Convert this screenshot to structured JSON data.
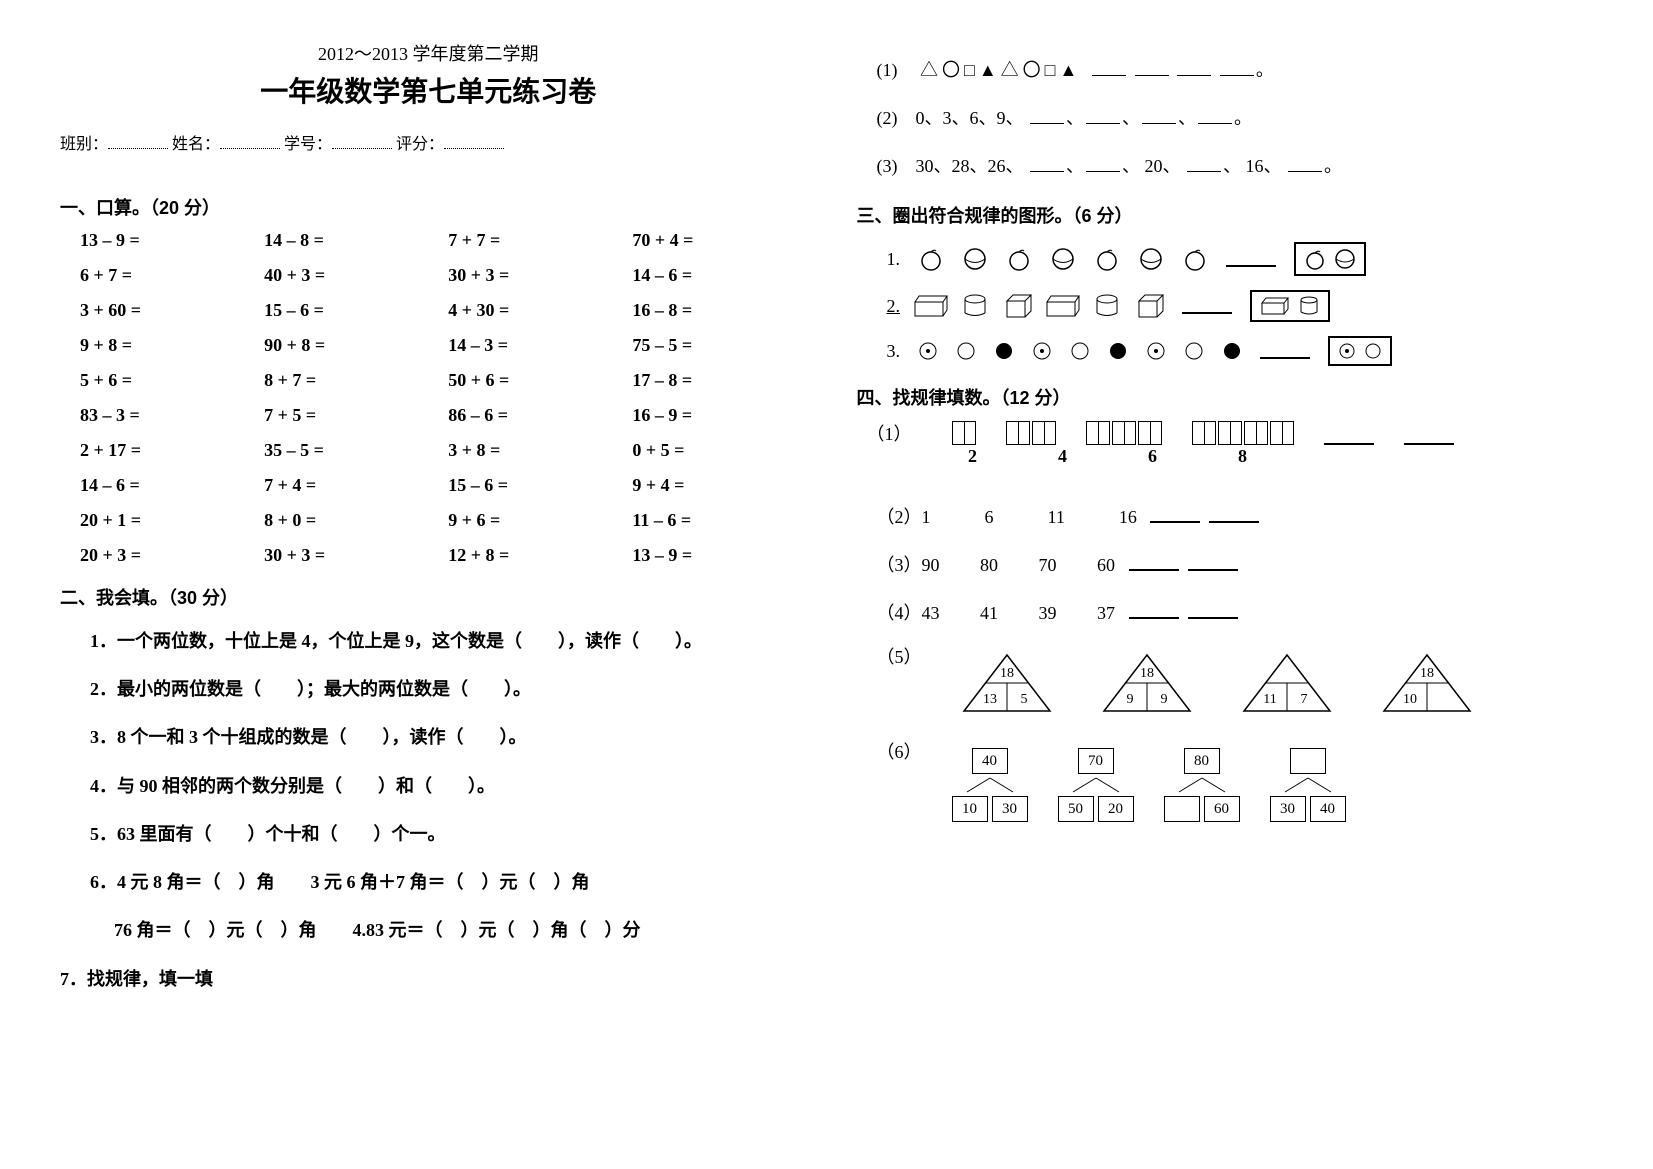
{
  "header": {
    "subtitle": "2012～2013 学年度第二学期",
    "title": "一年级数学第七单元练习卷",
    "info_class": "班别：",
    "info_name": "姓名：",
    "info_id": "学号：",
    "info_score": "评分："
  },
  "s1": {
    "head": "一、口算。（20 分）",
    "cells": [
      "13 – 9 =",
      "14 – 8 =",
      "7 + 7 =",
      "70 + 4 =",
      "6 + 7 =",
      "40 + 3 =",
      "30 + 3 =",
      "14 – 6 =",
      "3 + 60 =",
      "15 – 6 =",
      "4 + 30 =",
      "16 – 8 =",
      "9 + 8 =",
      "90 + 8 =",
      "14 – 3 =",
      "75 – 5 =",
      "5 + 6 =",
      "8 + 7 =",
      "50 + 6 =",
      "17 – 8 =",
      "83 – 3 =",
      "7 + 5 =",
      "86 – 6 =",
      "16 – 9 =",
      "2 + 17 =",
      "35 – 5 =",
      "3 + 8 =",
      "0 + 5 =",
      "14 – 6 =",
      "7 + 4 =",
      "15 – 6 =",
      "9 + 4 =",
      "20 + 1 =",
      "8 + 0 =",
      "9 + 6 =",
      "11 – 6 =",
      "20 + 3 =",
      "30 + 3 =",
      "12 + 8 =",
      "13 – 9 ="
    ]
  },
  "s2": {
    "head": "二、我会填。（30 分）",
    "q1": "1．一个两位数，十位上是 4，个位上是 9，这个数是（　　），读作（　　）。",
    "q2": "2．最小的两位数是（　　）；最大的两位数是（　　）。",
    "q3": "3．8 个一和 3 个十组成的数是（　　），读作（　　）。",
    "q4": "4．与 90 相邻的两个数分别是（　　）和（　　）。",
    "q5": "5．63 里面有（　　）个十和（　　）个一。",
    "q6a": "6．4 元 8 角＝（　）角　　3 元 6 角＋7 角＝（　）元（　）角",
    "q6b": "76 角＝（　）元（　）角　　4.83 元＝（　）元（　）角（　）分",
    "q7": "7．找规律，填一填"
  },
  "r7": {
    "l1_prefix": "(1)　",
    "l1_shapes": "△〇□▲△〇□▲",
    "l2_prefix": "(2)　0、3、6、9、",
    "l3_prefix": "(3)　30、28、26、",
    "l3_mid1": "20、",
    "l3_mid2": "16、"
  },
  "s3": {
    "head": "三、圈出符合规律的图形。（6 分）",
    "label1": "1.",
    "label2": "2.",
    "label3": "3."
  },
  "s4": {
    "head": "四、找规律填数。（12 分）",
    "q1_label": "（1）",
    "q1_nums": [
      "2",
      "4",
      "6",
      "8"
    ],
    "seq2": "（2）1　　　6　　　11　　　16",
    "seq3": "（3）90　　 80　　 70　　 60",
    "seq4": "（4）43　　 41　　 39　　 37",
    "q5_label": "（5）",
    "pyr": [
      {
        "t": "18",
        "l": "13",
        "r": "5"
      },
      {
        "t": "18",
        "l": "9",
        "r": "9"
      },
      {
        "t": "",
        "l": "11",
        "r": "7"
      },
      {
        "t": "18",
        "l": "10",
        "r": ""
      }
    ],
    "q6_label": "（6）",
    "trees": [
      {
        "t": "40",
        "l": "10",
        "r": "30"
      },
      {
        "t": "70",
        "l": "50",
        "r": "20"
      },
      {
        "t": "80",
        "l": "",
        "r": "60"
      },
      {
        "t": "",
        "l": "30",
        "r": "40"
      }
    ]
  }
}
